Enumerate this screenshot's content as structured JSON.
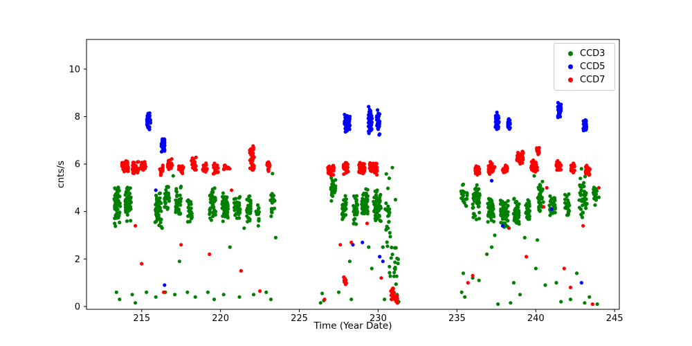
{
  "figure": {
    "background": "#ffffff",
    "xlabel": "Time (Year Date)",
    "ylabel": "cnts/s"
  },
  "legend": {
    "entries": [
      {
        "label": "CCD3",
        "color": "#008000"
      },
      {
        "label": "CCD5",
        "color": "#0000ff"
      },
      {
        "label": "CCD7",
        "color": "#ff0000"
      }
    ]
  },
  "chart_data": {
    "type": "scatter",
    "title": "",
    "xlabel": "Time (Year Date)",
    "ylabel": "cnts/s",
    "xlim": [
      211.5,
      245.3
    ],
    "ylim": [
      -0.12,
      11.25
    ],
    "x_ticks": [
      215,
      220,
      225,
      230,
      235,
      240,
      245
    ],
    "y_ticks": [
      0,
      2,
      4,
      6,
      8,
      10
    ],
    "grid": false,
    "legend_position": "upper right",
    "marker_radius": 2.6,
    "cluster_format": [
      "x_center",
      "x_halfwidth",
      "y_center",
      "y_halfheight",
      "n_points"
    ],
    "series": [
      {
        "name": "CCD3",
        "color": "#008000",
        "clusters": [
          [
            213.45,
            0.2,
            4.3,
            1.0,
            60
          ],
          [
            214.15,
            0.2,
            4.4,
            0.9,
            55
          ],
          [
            216.05,
            0.2,
            4.1,
            0.9,
            50
          ],
          [
            216.6,
            0.15,
            4.6,
            0.7,
            35
          ],
          [
            217.35,
            0.2,
            4.4,
            0.7,
            40
          ],
          [
            218.05,
            0.15,
            4.1,
            0.6,
            30
          ],
          [
            219.5,
            0.2,
            4.3,
            0.8,
            45
          ],
          [
            220.3,
            0.2,
            4.2,
            0.7,
            45
          ],
          [
            221.05,
            0.2,
            4.1,
            0.6,
            40
          ],
          [
            221.8,
            0.15,
            4.1,
            0.6,
            35
          ],
          [
            222.35,
            0.1,
            4.0,
            0.4,
            15
          ],
          [
            223.3,
            0.15,
            4.5,
            1.0,
            25
          ],
          [
            227.15,
            0.15,
            4.9,
            0.6,
            30
          ],
          [
            227.85,
            0.15,
            4.2,
            0.7,
            30
          ],
          [
            228.55,
            0.15,
            4.0,
            0.7,
            30
          ],
          [
            229.15,
            0.2,
            4.3,
            0.7,
            50
          ],
          [
            229.95,
            0.25,
            4.2,
            0.8,
            60
          ],
          [
            230.6,
            0.2,
            4.0,
            1.8,
            25
          ],
          [
            231.0,
            0.3,
            1.5,
            1.4,
            20
          ],
          [
            235.45,
            0.2,
            4.6,
            0.6,
            25
          ],
          [
            236.25,
            0.25,
            4.4,
            0.8,
            50
          ],
          [
            237.15,
            0.2,
            4.1,
            0.7,
            45
          ],
          [
            238.0,
            0.25,
            3.9,
            0.7,
            60
          ],
          [
            238.75,
            0.2,
            4.0,
            0.6,
            45
          ],
          [
            239.5,
            0.15,
            4.1,
            0.5,
            30
          ],
          [
            240.3,
            0.2,
            4.6,
            0.7,
            40
          ],
          [
            241.05,
            0.2,
            4.2,
            0.5,
            35
          ],
          [
            242.0,
            0.15,
            4.3,
            0.5,
            25
          ],
          [
            243.0,
            0.25,
            4.6,
            1.0,
            40
          ],
          [
            243.8,
            0.15,
            4.7,
            0.5,
            20
          ]
        ],
        "points": [
          [
            213.4,
            0.6
          ],
          [
            213.6,
            0.3
          ],
          [
            214.4,
            0.5
          ],
          [
            214.6,
            0.15
          ],
          [
            215.3,
            0.6
          ],
          [
            215.9,
            0.4
          ],
          [
            216.3,
            3.3
          ],
          [
            216.5,
            0.6
          ],
          [
            217.0,
            5.5
          ],
          [
            217.1,
            0.5
          ],
          [
            217.4,
            1.9
          ],
          [
            217.9,
            0.6
          ],
          [
            218.4,
            0.4
          ],
          [
            219.2,
            0.6
          ],
          [
            219.6,
            0.3
          ],
          [
            220.2,
            0.5
          ],
          [
            220.6,
            2.5
          ],
          [
            221.2,
            0.4
          ],
          [
            221.5,
            3.3
          ],
          [
            222.1,
            0.5
          ],
          [
            222.4,
            3.4
          ],
          [
            222.9,
            0.6
          ],
          [
            223.2,
            0.3
          ],
          [
            223.3,
            5.6
          ],
          [
            223.5,
            2.9
          ],
          [
            226.35,
            0.15
          ],
          [
            226.45,
            0.55
          ],
          [
            226.55,
            0.25
          ],
          [
            227.5,
            0.6
          ],
          [
            228.2,
            1.9
          ],
          [
            228.3,
            0.3
          ],
          [
            229.4,
            2.5
          ],
          [
            229.6,
            1.6
          ],
          [
            230.3,
            2.5
          ],
          [
            230.4,
            0.3
          ],
          [
            230.9,
            5.85
          ],
          [
            231.1,
            4.5
          ],
          [
            231.2,
            0.5
          ],
          [
            231.3,
            0.2
          ],
          [
            235.3,
            0.6
          ],
          [
            235.4,
            1.4
          ],
          [
            235.5,
            0.4
          ],
          [
            236.0,
            1.2
          ],
          [
            236.4,
            1.1
          ],
          [
            236.9,
            2.2
          ],
          [
            237.2,
            2.5
          ],
          [
            237.4,
            3.0
          ],
          [
            237.6,
            0.1
          ],
          [
            238.4,
            0.15
          ],
          [
            238.6,
            1.0
          ],
          [
            239.0,
            0.5
          ],
          [
            239.3,
            2.9
          ],
          [
            239.9,
            5.5
          ],
          [
            240.0,
            1.6
          ],
          [
            240.1,
            2.8
          ],
          [
            240.6,
            0.9
          ],
          [
            241.3,
            1.0
          ],
          [
            241.6,
            0.2
          ],
          [
            242.2,
            0.3
          ],
          [
            242.6,
            1.4
          ],
          [
            242.9,
            5.8
          ],
          [
            243.1,
            0.15
          ],
          [
            243.4,
            0.4
          ],
          [
            243.9,
            0.1
          ],
          [
            244.0,
            4.6
          ]
        ]
      },
      {
        "name": "CCD5",
        "color": "#0000ff",
        "clusters": [
          [
            215.45,
            0.12,
            7.8,
            0.45,
            40
          ],
          [
            216.35,
            0.12,
            6.8,
            0.4,
            35
          ],
          [
            227.95,
            0.1,
            7.75,
            0.45,
            30
          ],
          [
            228.15,
            0.08,
            7.7,
            0.4,
            20
          ],
          [
            229.5,
            0.12,
            7.9,
            0.65,
            45
          ],
          [
            230.0,
            0.1,
            7.75,
            0.55,
            35
          ],
          [
            237.55,
            0.12,
            7.8,
            0.4,
            35
          ],
          [
            238.3,
            0.08,
            7.65,
            0.3,
            20
          ],
          [
            241.5,
            0.1,
            8.3,
            0.4,
            35
          ],
          [
            243.1,
            0.12,
            7.65,
            0.3,
            25
          ]
        ],
        "points": [
          [
            215.9,
            4.9
          ],
          [
            216.45,
            0.9
          ],
          [
            228.4,
            2.6
          ],
          [
            229.0,
            2.7
          ],
          [
            230.1,
            2.1
          ],
          [
            230.3,
            1.9
          ],
          [
            237.2,
            5.3
          ],
          [
            237.9,
            3.4
          ],
          [
            241.0,
            4.1
          ],
          [
            242.9,
            1.0
          ]
        ]
      },
      {
        "name": "CCD7",
        "color": "#ff0000",
        "clusters": [
          [
            213.95,
            0.2,
            5.9,
            0.3,
            35
          ],
          [
            214.6,
            0.2,
            5.85,
            0.3,
            35
          ],
          [
            215.1,
            0.15,
            5.9,
            0.25,
            25
          ],
          [
            216.25,
            0.1,
            5.75,
            0.25,
            15
          ],
          [
            216.8,
            0.15,
            5.95,
            0.3,
            25
          ],
          [
            217.5,
            0.15,
            5.75,
            0.25,
            20
          ],
          [
            218.3,
            0.15,
            6.0,
            0.35,
            25
          ],
          [
            219.0,
            0.15,
            5.85,
            0.25,
            20
          ],
          [
            219.7,
            0.15,
            5.8,
            0.25,
            20
          ],
          [
            220.4,
            0.2,
            5.85,
            0.25,
            15
          ],
          [
            222.0,
            0.15,
            6.2,
            0.6,
            35
          ],
          [
            223.05,
            0.1,
            5.9,
            0.3,
            15
          ],
          [
            227.0,
            0.2,
            5.8,
            0.3,
            35
          ],
          [
            227.95,
            0.15,
            5.85,
            0.3,
            30
          ],
          [
            228.95,
            0.2,
            5.8,
            0.3,
            35
          ],
          [
            229.7,
            0.25,
            5.85,
            0.35,
            50
          ],
          [
            227.9,
            0.08,
            1.15,
            0.25,
            12
          ],
          [
            230.9,
            0.12,
            0.55,
            0.35,
            18
          ],
          [
            231.15,
            0.1,
            0.3,
            0.25,
            12
          ],
          [
            236.3,
            0.15,
            5.7,
            0.25,
            25
          ],
          [
            237.2,
            0.2,
            5.8,
            0.3,
            35
          ],
          [
            238.05,
            0.15,
            5.75,
            0.25,
            25
          ],
          [
            239.0,
            0.2,
            6.25,
            0.35,
            40
          ],
          [
            239.9,
            0.2,
            5.9,
            0.3,
            35
          ],
          [
            240.15,
            0.1,
            6.6,
            0.3,
            15
          ],
          [
            241.45,
            0.15,
            5.9,
            0.25,
            25
          ],
          [
            242.35,
            0.12,
            5.8,
            0.25,
            20
          ],
          [
            243.3,
            0.15,
            5.75,
            0.25,
            25
          ]
        ],
        "points": [
          [
            214.6,
            3.4
          ],
          [
            215.0,
            1.8
          ],
          [
            216.4,
            0.6
          ],
          [
            217.5,
            2.6
          ],
          [
            219.3,
            2.2
          ],
          [
            220.7,
            4.9
          ],
          [
            221.3,
            1.5
          ],
          [
            222.5,
            0.65
          ],
          [
            226.6,
            0.3
          ],
          [
            227.6,
            2.6
          ],
          [
            228.3,
            2.7
          ],
          [
            229.3,
            3.5
          ],
          [
            230.2,
            1.2
          ],
          [
            235.7,
            1.0
          ],
          [
            236.0,
            1.3
          ],
          [
            238.3,
            3.3
          ],
          [
            239.4,
            2.1
          ],
          [
            240.5,
            4.2
          ],
          [
            240.7,
            5.0
          ],
          [
            241.8,
            1.6
          ],
          [
            242.2,
            0.8
          ],
          [
            243.0,
            3.4
          ],
          [
            243.6,
            0.1
          ],
          [
            244.0,
            5.0
          ]
        ]
      }
    ]
  }
}
